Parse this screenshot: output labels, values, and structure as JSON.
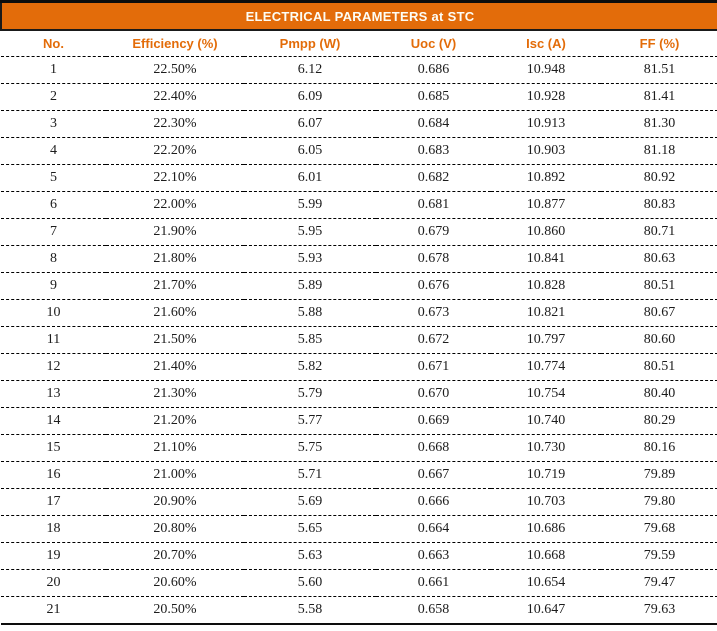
{
  "table": {
    "title": "ELECTRICAL PARAMETERS at STC",
    "column_keys": [
      "no",
      "efficiency",
      "pmpp",
      "uoc",
      "isc",
      "ff"
    ],
    "columns": [
      "No.",
      "Efficiency (%)",
      "Pmpp (W)",
      "Uoc (V)",
      "Isc (A)",
      "FF (%)"
    ],
    "rows": [
      [
        "1",
        "22.50%",
        "6.12",
        "0.686",
        "10.948",
        "81.51"
      ],
      [
        "2",
        "22.40%",
        "6.09",
        "0.685",
        "10.928",
        "81.41"
      ],
      [
        "3",
        "22.30%",
        "6.07",
        "0.684",
        "10.913",
        "81.30"
      ],
      [
        "4",
        "22.20%",
        "6.05",
        "0.683",
        "10.903",
        "81.18"
      ],
      [
        "5",
        "22.10%",
        "6.01",
        "0.682",
        "10.892",
        "80.92"
      ],
      [
        "6",
        "22.00%",
        "5.99",
        "0.681",
        "10.877",
        "80.83"
      ],
      [
        "7",
        "21.90%",
        "5.95",
        "0.679",
        "10.860",
        "80.71"
      ],
      [
        "8",
        "21.80%",
        "5.93",
        "0.678",
        "10.841",
        "80.63"
      ],
      [
        "9",
        "21.70%",
        "5.89",
        "0.676",
        "10.828",
        "80.51"
      ],
      [
        "10",
        "21.60%",
        "5.88",
        "0.673",
        "10.821",
        "80.67"
      ],
      [
        "11",
        "21.50%",
        "5.85",
        "0.672",
        "10.797",
        "80.60"
      ],
      [
        "12",
        "21.40%",
        "5.82",
        "0.671",
        "10.774",
        "80.51"
      ],
      [
        "13",
        "21.30%",
        "5.79",
        "0.670",
        "10.754",
        "80.40"
      ],
      [
        "14",
        "21.20%",
        "5.77",
        "0.669",
        "10.740",
        "80.29"
      ],
      [
        "15",
        "21.10%",
        "5.75",
        "0.668",
        "10.730",
        "80.16"
      ],
      [
        "16",
        "21.00%",
        "5.71",
        "0.667",
        "10.719",
        "79.89"
      ],
      [
        "17",
        "20.90%",
        "5.69",
        "0.666",
        "10.703",
        "79.80"
      ],
      [
        "18",
        "20.80%",
        "5.65",
        "0.664",
        "10.686",
        "79.68"
      ],
      [
        "19",
        "20.70%",
        "5.63",
        "0.663",
        "10.668",
        "79.59"
      ],
      [
        "20",
        "20.60%",
        "5.60",
        "0.661",
        "10.654",
        "79.47"
      ],
      [
        "21",
        "20.50%",
        "5.58",
        "0.658",
        "10.647",
        "79.63"
      ]
    ],
    "colors": {
      "title_bg": "#E36C0A",
      "title_text": "#FDFDF5",
      "column_header_text": "#E36C09",
      "body_text": "#1C1C1C",
      "border": "#0D0D0D"
    }
  }
}
